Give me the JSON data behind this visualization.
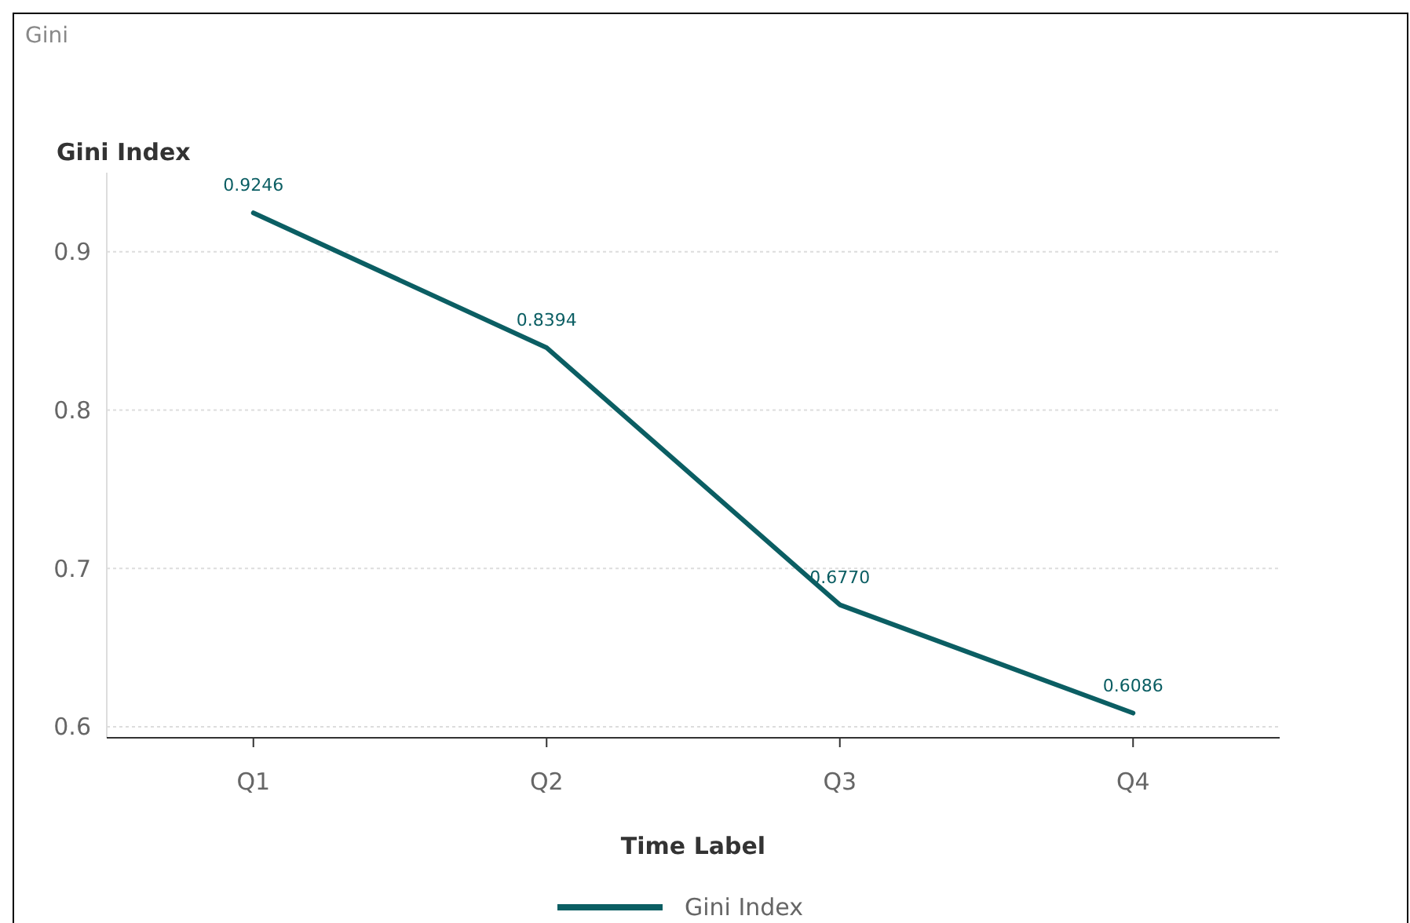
{
  "chart_data": {
    "type": "line",
    "title": "Gini",
    "xlabel": "Time Label",
    "ylabel": "Gini Index",
    "categories": [
      "Q1",
      "Q2",
      "Q3",
      "Q4"
    ],
    "series": [
      {
        "name": "Gini Index",
        "color": "#0b5e63",
        "values": [
          0.9246,
          0.8394,
          0.677,
          0.6086
        ]
      }
    ],
    "ylim": [
      0.593,
      0.95
    ],
    "yticks": [
      {
        "value": 0.6,
        "label": "0.6"
      },
      {
        "value": 0.7,
        "label": "0.7"
      },
      {
        "value": 0.8,
        "label": "0.8"
      },
      {
        "value": 0.9,
        "label": "0.9"
      }
    ],
    "value_labels": [
      "0.9246",
      "0.8394",
      "0.6770",
      "0.6086"
    ],
    "grid": "y",
    "legend": "bottom",
    "marker": "none",
    "line_style": "solid"
  }
}
